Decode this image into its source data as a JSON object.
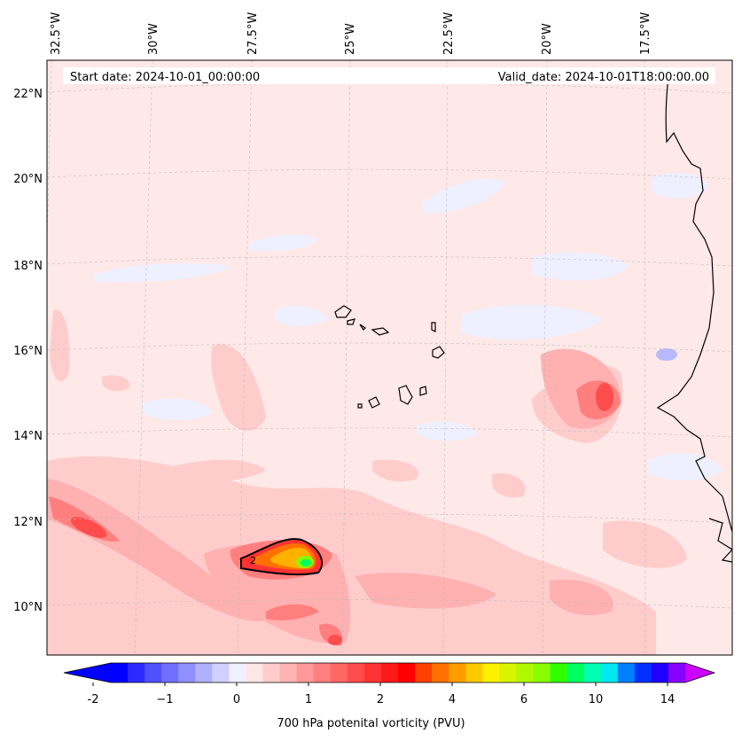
{
  "map": {
    "start_date_label": "Start date: 2024-10-01_00:00:00",
    "valid_date_label": "Valid_date: 2024-10-01T18:00:00.00",
    "longitude_labels": [
      "32.5°W",
      "30°W",
      "27.5°W",
      "25°W",
      "22.5°W",
      "20°W",
      "17.5°W"
    ],
    "latitude_labels": [
      "22°N",
      "20°N",
      "18°N",
      "16°N",
      "14°N",
      "12°N",
      "10°N"
    ],
    "contour_label": "2",
    "background_color": "#ffe8e8",
    "coastline_color": "#000000"
  },
  "colorbar": {
    "label": "700 hPa potenital vorticity (PVU)",
    "ticks": [
      "-2",
      "−1",
      "0",
      "1",
      "2",
      "4",
      "6",
      "10",
      "14"
    ],
    "tick_values": [
      -2,
      -1,
      0,
      1,
      2,
      4,
      6,
      10,
      14
    ],
    "extend": "both",
    "under_color": "#0000ff",
    "over_color": "#cc00ff",
    "colors": [
      "#0000ff",
      "#2a2aff",
      "#5050ff",
      "#7070ff",
      "#8f8fff",
      "#b0b0ff",
      "#d0d0ff",
      "#f0f0ff",
      "#ffe6e6",
      "#ffcccc",
      "#ffb3b3",
      "#ff9999",
      "#ff7f7f",
      "#ff6666",
      "#ff4c4c",
      "#ff3333",
      "#ff1a1a",
      "#ff0000",
      "#ff4000",
      "#ff7000",
      "#ff9c00",
      "#ffc800",
      "#fff000",
      "#d8f400",
      "#b0f800",
      "#88fc00",
      "#30ff00",
      "#00ff60",
      "#00ffb0",
      "#00e8f0",
      "#0080ff",
      "#0030ff",
      "#2000ff",
      "#8800ff"
    ]
  }
}
